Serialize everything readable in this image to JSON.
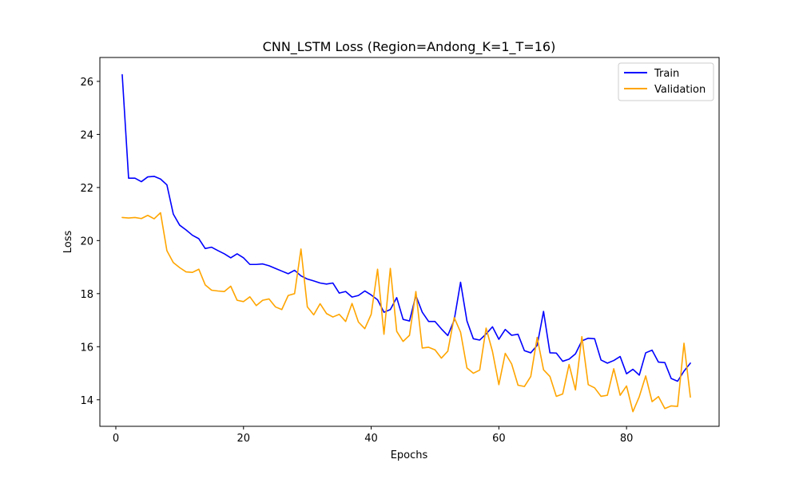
{
  "chart_data": {
    "type": "line",
    "title": "CNN_LSTM Loss (Region=Andong_K=1_T=16)",
    "xlabel": "Epochs",
    "ylabel": "Loss",
    "xlim": [
      -2.5,
      94.5
    ],
    "ylim": [
      13.0,
      26.9
    ],
    "xticks": [
      0,
      20,
      40,
      60,
      80
    ],
    "yticks": [
      14,
      16,
      18,
      20,
      22,
      24,
      26
    ],
    "grid": false,
    "legend_position": "top-right",
    "x": [
      1,
      2,
      3,
      4,
      5,
      6,
      7,
      8,
      9,
      10,
      11,
      12,
      13,
      14,
      15,
      16,
      17,
      18,
      19,
      20,
      21,
      22,
      23,
      24,
      25,
      26,
      27,
      28,
      29,
      30,
      31,
      32,
      33,
      34,
      35,
      36,
      37,
      38,
      39,
      40,
      41,
      42,
      43,
      44,
      45,
      46,
      47,
      48,
      49,
      50,
      51,
      52,
      53,
      54,
      55,
      56,
      57,
      58,
      59,
      60,
      61,
      62,
      63,
      64,
      65,
      66,
      67,
      68,
      69,
      70,
      71,
      72,
      73,
      74,
      75,
      76,
      77,
      78,
      79,
      80,
      81,
      82,
      83,
      84,
      85,
      86,
      87,
      88,
      89,
      90
    ],
    "series": [
      {
        "name": "Train",
        "color": "#0000ff",
        "values": [
          26.25,
          22.35,
          22.35,
          22.22,
          22.4,
          22.42,
          22.32,
          22.1,
          21.0,
          20.58,
          20.4,
          20.2,
          20.07,
          19.7,
          19.75,
          19.62,
          19.5,
          19.35,
          19.5,
          19.35,
          19.1,
          19.1,
          19.12,
          19.05,
          18.95,
          18.85,
          18.75,
          18.88,
          18.67,
          18.55,
          18.48,
          18.4,
          18.36,
          18.4,
          18.02,
          18.08,
          17.87,
          17.93,
          18.1,
          17.95,
          17.77,
          17.3,
          17.4,
          17.85,
          17.03,
          16.97,
          17.93,
          17.3,
          16.95,
          16.95,
          16.67,
          16.42,
          17.0,
          18.43,
          16.97,
          16.3,
          16.25,
          16.48,
          16.75,
          16.28,
          16.65,
          16.43,
          16.47,
          15.85,
          15.77,
          16.05,
          17.33,
          15.77,
          15.76,
          15.45,
          15.53,
          15.73,
          16.22,
          16.32,
          16.3,
          15.5,
          15.38,
          15.48,
          15.63,
          14.98,
          15.15,
          14.93,
          15.77,
          15.87,
          15.42,
          15.4,
          14.8,
          14.7,
          15.08,
          15.38
        ]
      },
      {
        "name": "Validation",
        "color": "#ffa500",
        "values": [
          20.87,
          20.85,
          20.87,
          20.83,
          20.95,
          20.82,
          21.05,
          19.62,
          19.17,
          18.98,
          18.82,
          18.8,
          18.92,
          18.33,
          18.13,
          18.1,
          18.08,
          18.28,
          17.75,
          17.7,
          17.88,
          17.55,
          17.75,
          17.8,
          17.5,
          17.4,
          17.93,
          18.0,
          19.68,
          17.5,
          17.2,
          17.62,
          17.25,
          17.12,
          17.22,
          16.95,
          17.63,
          16.93,
          16.68,
          17.22,
          18.92,
          16.47,
          18.95,
          16.58,
          16.2,
          16.43,
          18.08,
          15.95,
          15.98,
          15.88,
          15.57,
          15.83,
          17.1,
          16.55,
          15.2,
          15.0,
          15.12,
          16.7,
          15.82,
          14.57,
          15.75,
          15.35,
          14.55,
          14.5,
          14.88,
          16.35,
          15.13,
          14.88,
          14.13,
          14.22,
          15.33,
          14.37,
          16.38,
          14.57,
          14.45,
          14.13,
          14.17,
          15.17,
          14.17,
          14.52,
          13.55,
          14.12,
          14.9,
          13.93,
          14.12,
          13.67,
          13.77,
          13.75,
          16.13,
          14.1
        ]
      }
    ]
  }
}
